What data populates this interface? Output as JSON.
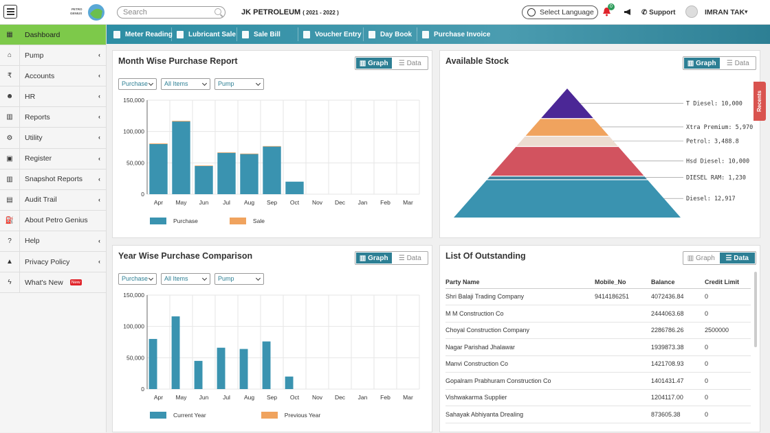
{
  "header": {
    "logo_text": "PETRO GENIUS",
    "search_placeholder": "Search",
    "company": "JK PETROLEUM",
    "fiscal_year": "( 2021 - 2022 )",
    "language_label": "Select Language",
    "notification_count": "0",
    "support_label": "Support",
    "user_name": "IMRAN TAK"
  },
  "sidebar": {
    "items": [
      {
        "label": "Dashboard",
        "icon": "grid-icon",
        "glyph": "▦",
        "active": true,
        "has_chevron": false
      },
      {
        "label": "Pump",
        "icon": "bank-icon",
        "glyph": "⌂",
        "has_chevron": true
      },
      {
        "label": "Accounts",
        "icon": "rupee-icon",
        "glyph": "₹",
        "has_chevron": true
      },
      {
        "label": "HR",
        "icon": "users-icon",
        "glyph": "☻",
        "has_chevron": true
      },
      {
        "label": "Reports",
        "icon": "bar-chart-icon",
        "glyph": "▥",
        "has_chevron": true
      },
      {
        "label": "Utility",
        "icon": "cogs-icon",
        "glyph": "⚙",
        "has_chevron": true
      },
      {
        "label": "Register",
        "icon": "book-icon",
        "glyph": "▣",
        "has_chevron": true
      },
      {
        "label": "Snapshot Reports",
        "icon": "chart-icon",
        "glyph": "▥",
        "has_chevron": true
      },
      {
        "label": "Audit Trail",
        "icon": "calculator-icon",
        "glyph": "▤",
        "has_chevron": true
      },
      {
        "label": "About Petro Genius",
        "icon": "fuel-icon",
        "glyph": "⛽",
        "has_chevron": false
      },
      {
        "label": "Help",
        "icon": "question-icon",
        "glyph": "?",
        "has_chevron": true
      },
      {
        "label": "Privacy Policy",
        "icon": "lock-icon",
        "glyph": "▲",
        "has_chevron": true
      },
      {
        "label": "What's New",
        "icon": "bolt-icon",
        "glyph": "ϟ",
        "has_chevron": false,
        "badge": "New"
      }
    ]
  },
  "quickbar": {
    "items": [
      "Meter Reading",
      "Lubricant Sale",
      "Sale Bill",
      "Voucher Entry",
      "Day Book",
      "Purchase Invoice"
    ]
  },
  "toggle": {
    "graph": "Graph",
    "data": "Data"
  },
  "filters": {
    "type": "Purchase",
    "items": "All Items",
    "pump": "Pump"
  },
  "recents_label": "Recents",
  "colors": {
    "bar": "#3a93b0",
    "sale": "#f0a35e",
    "accent": "#2d7f94",
    "active": "#7dc94a"
  },
  "month_report": {
    "title": "Month Wise Purchase Report",
    "legend": [
      "Purchase",
      "Sale"
    ]
  },
  "year_report": {
    "title": "Year Wise Purchase Comparison",
    "legend": [
      "Current Year",
      "Previous Year"
    ]
  },
  "stock": {
    "title": "Available Stock"
  },
  "outstanding": {
    "title": "List Of Outstanding",
    "columns": [
      "Party Name",
      "Mobile_No",
      "Balance",
      "Credit Limit"
    ],
    "rows": [
      [
        "Shri Balaji Trading Company",
        "9414186251",
        "4072436.84",
        "0"
      ],
      [
        "M M Construction Co",
        "",
        "2444063.68",
        "0"
      ],
      [
        "Choyal Construction Company",
        "",
        "2286786.26",
        "2500000"
      ],
      [
        "Nagar Parishad Jhalawar",
        "",
        "1939873.38",
        "0"
      ],
      [
        "Manvi Construction Co",
        "",
        "1421708.93",
        "0"
      ],
      [
        "Gopalram Prabhuram Construction Co",
        "",
        "1401431.47",
        "0"
      ],
      [
        "Vishwakarma Supplier",
        "",
        "1204117.00",
        "0"
      ],
      [
        "Sahayak Abhiyanta Drealing",
        "",
        "873605.38",
        "0"
      ]
    ]
  },
  "chart_data": [
    {
      "type": "bar",
      "title": "Month Wise Purchase Report",
      "categories": [
        "Apr",
        "May",
        "Jun",
        "Jul",
        "Aug",
        "Sep",
        "Oct",
        "Nov",
        "Dec",
        "Jan",
        "Feb",
        "Mar"
      ],
      "series": [
        {
          "name": "Purchase",
          "values": [
            80000,
            116000,
            45000,
            66000,
            64000,
            76000,
            20000,
            0,
            0,
            0,
            0,
            0
          ]
        },
        {
          "name": "Sale",
          "values": [
            1000,
            1000,
            800,
            800,
            800,
            800,
            0,
            0,
            0,
            0,
            0,
            0
          ]
        }
      ],
      "ylim": [
        0,
        150000
      ],
      "yticks": [
        "0",
        "50,000",
        "100,000",
        "150,000"
      ],
      "stacked": true
    },
    {
      "type": "bar",
      "title": "Year Wise Purchase Comparison",
      "categories": [
        "Apr",
        "May",
        "Jun",
        "Jul",
        "Aug",
        "Sep",
        "Oct",
        "Nov",
        "Dec",
        "Jan",
        "Feb",
        "Mar"
      ],
      "series": [
        {
          "name": "Current Year",
          "values": [
            80000,
            116000,
            45000,
            66000,
            64000,
            76000,
            20000,
            0,
            0,
            0,
            0,
            0
          ]
        },
        {
          "name": "Previous Year",
          "values": [
            0,
            0,
            0,
            0,
            0,
            0,
            0,
            0,
            0,
            0,
            0,
            0
          ]
        }
      ],
      "ylim": [
        0,
        150000
      ],
      "yticks": [
        "0",
        "50,000",
        "100,000",
        "150,000"
      ]
    },
    {
      "type": "pyramid",
      "title": "Available Stock",
      "slices": [
        {
          "name": "T Diesel",
          "value": 10000,
          "label": "T Diesel: 10,000",
          "color": "#4b2796"
        },
        {
          "name": "Xtra Premium",
          "value": 5970,
          "label": "Xtra Premium: 5,970",
          "color": "#f0a35e"
        },
        {
          "name": "Petrol",
          "value": 3488.8,
          "label": "Petrol: 3,488.8",
          "color": "#ecdcd0"
        },
        {
          "name": "Hsd Diesel",
          "value": 10000,
          "label": "Hsd Diesel: 10,000",
          "color": "#d2535f"
        },
        {
          "name": "DIESEL RAM",
          "value": 1230,
          "label": "DIESEL RAM: 1,230",
          "color": "#3b7f9a"
        },
        {
          "name": "Diesel",
          "value": 12917,
          "label": "Diesel: 12,917",
          "color": "#3a93b0"
        }
      ]
    }
  ]
}
